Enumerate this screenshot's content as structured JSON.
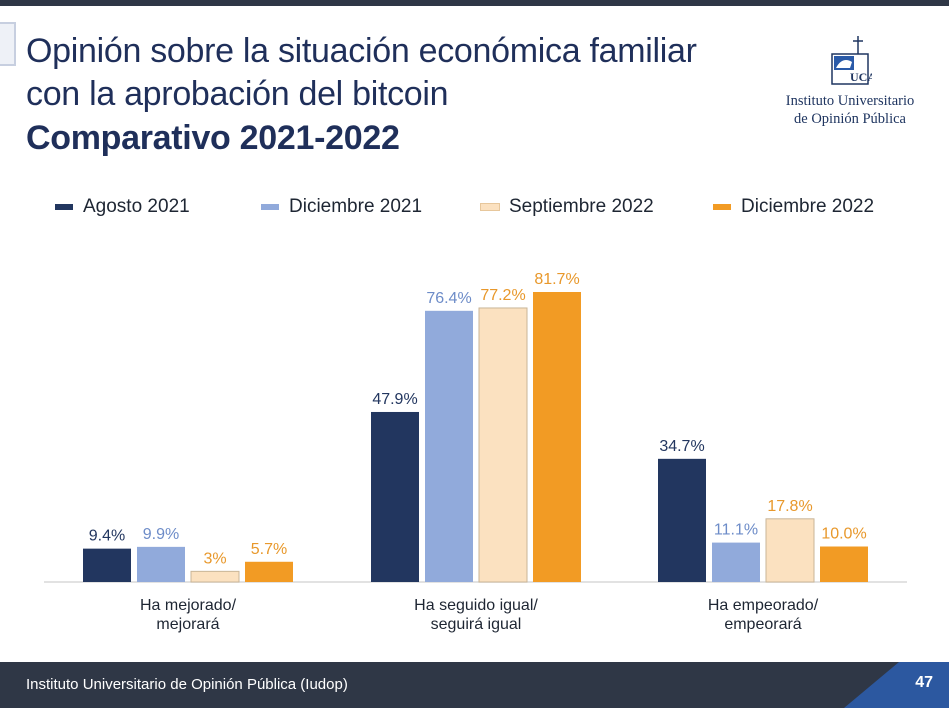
{
  "slide": {
    "title_line1": "Opinión sobre la situación económica familiar",
    "title_line2": "con la aprobación del bitcoin",
    "title_line3": "Comparativo 2021-2022"
  },
  "logo": {
    "name": "UCA",
    "org_line1": "Instituto Universitario",
    "org_line2": "de Opinión Pública"
  },
  "footer": {
    "text": "Instituto Universitario de Opinión Pública (Iudop)",
    "page": "47"
  },
  "chart_data": {
    "type": "bar",
    "categories": [
      "Ha mejorado/\nmejorará",
      "Ha seguido igual/\nseguirá igual",
      "Ha empeorado/\nempeorará"
    ],
    "series": [
      {
        "name": "Agosto 2021",
        "values": [
          9.4,
          47.9,
          34.7
        ],
        "labels": [
          "9.4%",
          "47.9%",
          "34.7%"
        ],
        "color": "#22365f",
        "label_color": "#22365f"
      },
      {
        "name": "Diciembre 2021",
        "values": [
          9.9,
          76.4,
          11.1
        ],
        "labels": [
          "9.9%",
          "76.4%",
          "11.1%"
        ],
        "color": "#91aadb",
        "label_color": "#6d8cc8"
      },
      {
        "name": "Septiembre 2022",
        "values": [
          3,
          77.2,
          17.8
        ],
        "labels": [
          "3%",
          "77.2%",
          "17.8%"
        ],
        "color": "#fbe1c0",
        "label_color": "#e8982b"
      },
      {
        "name": "Diciembre 2022",
        "values": [
          5.7,
          81.7,
          10.0
        ],
        "labels": [
          "5.7%",
          "81.7%",
          "10.0%"
        ],
        "color": "#f29b24",
        "label_color": "#e8982b"
      }
    ],
    "legend_position": "top",
    "grid": false,
    "ylim": [
      0,
      100
    ]
  }
}
